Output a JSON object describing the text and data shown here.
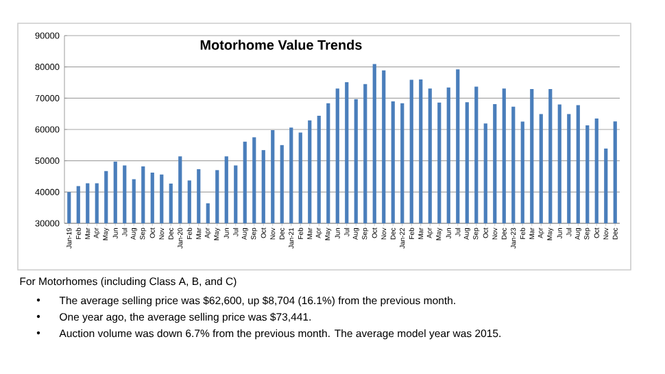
{
  "chart_data": {
    "type": "bar",
    "title": "Motorhome Value Trends",
    "categories": [
      "Jan-19",
      "Feb",
      "Mar",
      "Apr",
      "May",
      "Jun",
      "Jul",
      "Aug",
      "Sep",
      "Oct",
      "Nov",
      "Dec",
      "Jan-20",
      "Feb",
      "Mar",
      "Apr",
      "May",
      "Jun",
      "Jul",
      "Aug",
      "Sep",
      "Oct",
      "Nov",
      "Dec",
      "Jan-21",
      "Feb",
      "Mar",
      "Apr",
      "May",
      "Jun",
      "Jul",
      "Aug",
      "Sep",
      "Oct",
      "Nov",
      "Dec",
      "Jan-22",
      "Feb",
      "Mar",
      "Apr",
      "May",
      "Jun",
      "Jul",
      "Aug",
      "Sep",
      "Oct",
      "Nov",
      "Dec",
      "Jan-23",
      "Feb",
      "Mar",
      "Apr",
      "May",
      "Jun",
      "Jul",
      "Aug",
      "Sep",
      "Oct",
      "Nov",
      "Dec"
    ],
    "values": [
      40000,
      41900,
      42800,
      42800,
      46700,
      49700,
      48500,
      44100,
      48200,
      46200,
      45600,
      42700,
      51400,
      43700,
      47300,
      36400,
      47000,
      51400,
      48500,
      56100,
      57500,
      53400,
      59800,
      55000,
      60600,
      59000,
      62900,
      64400,
      68400,
      73100,
      75100,
      69700,
      74500,
      80900,
      78900,
      69000,
      68400,
      75900,
      76000,
      73100,
      68600,
      73400,
      79200,
      68700,
      73700,
      61900,
      68100,
      73100,
      67300,
      62500,
      72900,
      64900,
      72900,
      68000,
      64900,
      67800,
      61300,
      63500,
      53900,
      62600
    ],
    "color": "#4a7ebb",
    "ylim": [
      30000,
      90000
    ],
    "yticks": [
      30000,
      40000,
      50000,
      60000,
      70000,
      80000,
      90000
    ],
    "grid": "y",
    "annotations": [
      "For Motorhomes (including Class A, B, and C)",
      "The average selling price was $62,600, up $8,704 (16.1%) from the previous month.",
      "One year ago, the average selling price was $73,441.",
      "Auction volume was down 6.7% from the previous month.  The average model year was 2015."
    ]
  }
}
